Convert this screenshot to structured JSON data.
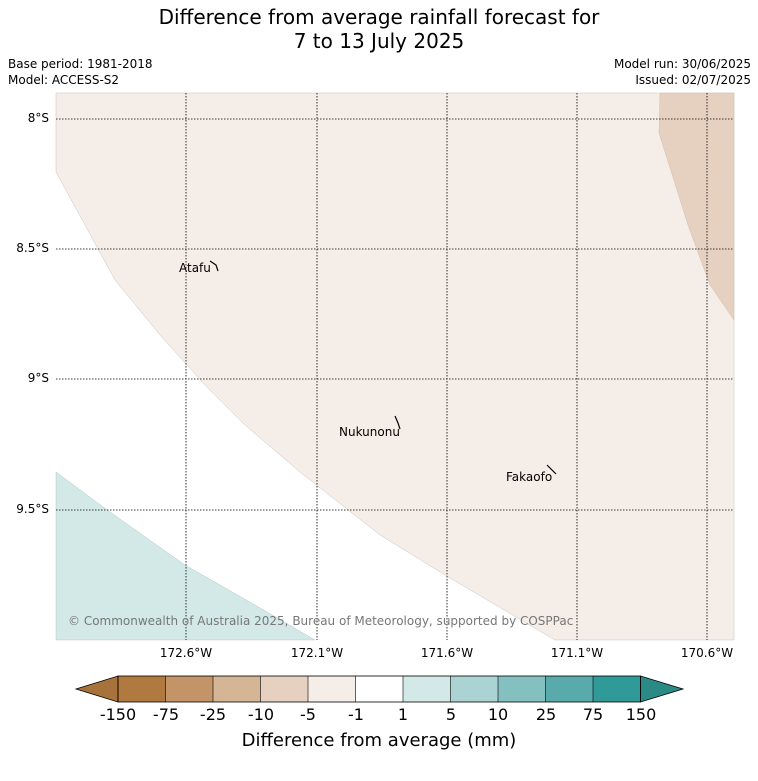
{
  "title": {
    "line1": "Difference from average rainfall forecast for",
    "line2": "7 to 13 July 2025"
  },
  "meta": {
    "base_period": "Base period: 1981-2018",
    "model": "Model: ACCESS-S2",
    "model_run": "Model run: 30/06/2025",
    "issued": "Issued: 02/07/2025"
  },
  "map": {
    "lat_labels": [
      "8°S",
      "8.5°S",
      "9°S",
      "9.5°S"
    ],
    "lon_labels": [
      "172.6°W",
      "172.1°W",
      "171.6°W",
      "171.1°W",
      "170.6°W"
    ],
    "places": [
      "Atafu",
      "Nukunonu",
      "Fakaofo"
    ],
    "credit": "© Commonwealth of Australia 2025, Bureau of Meteorology, supported by COSPPac",
    "colors": {
      "band_-5_-1": "#f5ede7",
      "band_-10_-5": "#e6d1c0",
      "band_1_5": "#d3e9e7"
    }
  },
  "colorbar": {
    "ticks": [
      "-150",
      "-75",
      "-25",
      "-10",
      "-5",
      "-1",
      "1",
      "5",
      "10",
      "25",
      "75",
      "150"
    ],
    "colors": [
      "#a8733a",
      "#b07940",
      "#c29468",
      "#d4b596",
      "#e6d1c0",
      "#f5ede7",
      "#ffffff",
      "#d3e9e7",
      "#abd3d3",
      "#84c0bf",
      "#59aaaa",
      "#309a98",
      "#2b8a85"
    ],
    "label": "Difference from average (mm)"
  }
}
